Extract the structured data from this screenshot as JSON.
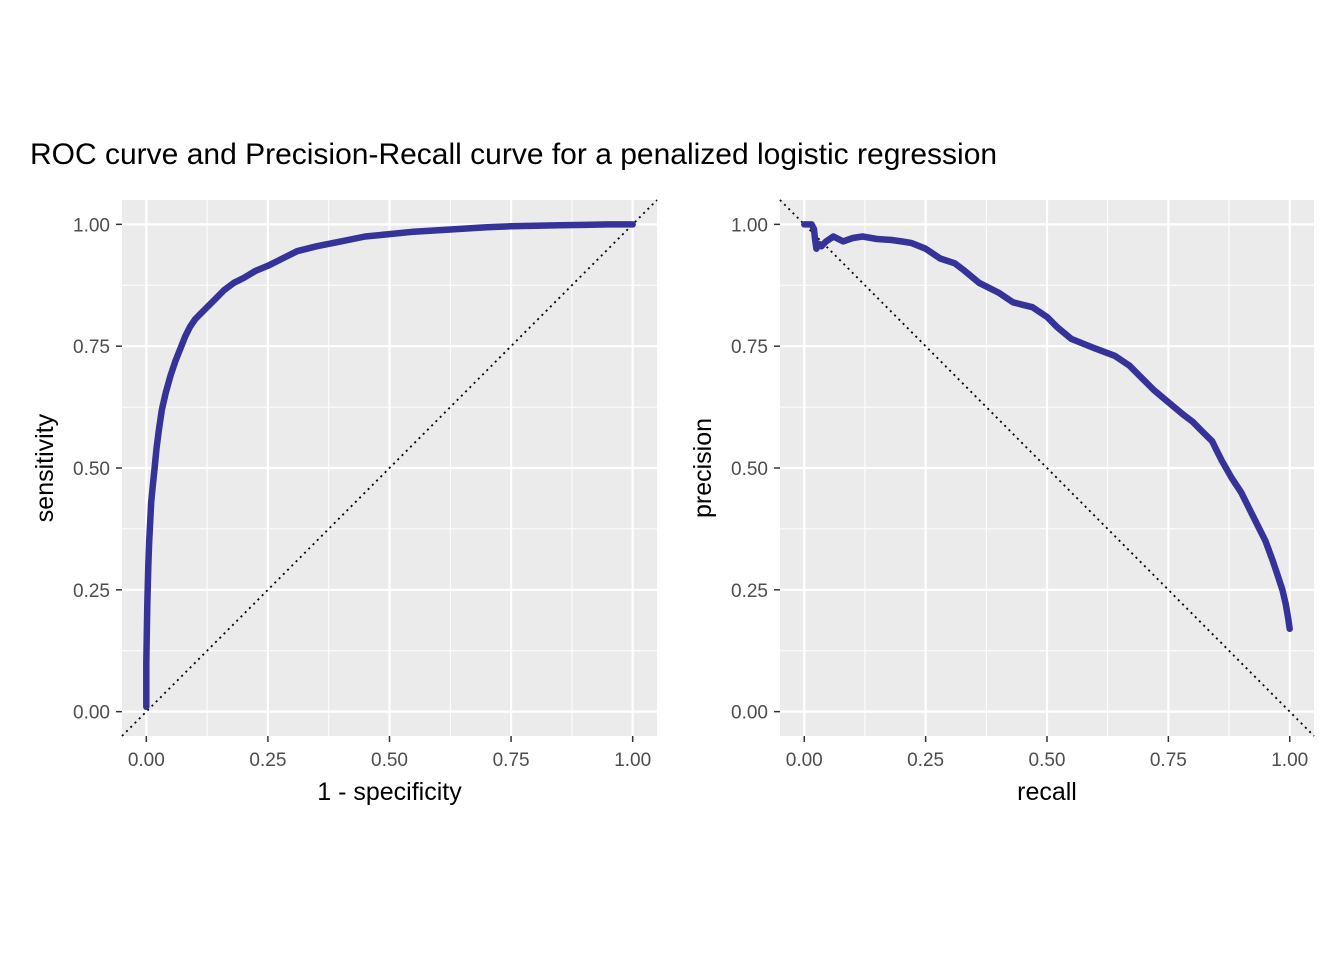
{
  "figure_title": "ROC curve and Precision-Recall curve for a penalized logistic regression",
  "colors": {
    "panel_background": "#EBEBEB",
    "grid_line": "#FFFFFF",
    "curve": "#35339A",
    "reference_line": "#000000",
    "tick_text": "#4D4D4D"
  },
  "chart_data": [
    {
      "type": "line",
      "name": "ROC curve",
      "xlabel": "1 - specificity",
      "ylabel": "sensitivity",
      "xlim": [
        -0.05,
        1.05
      ],
      "ylim": [
        -0.05,
        1.05
      ],
      "x_ticks": [
        "0.00",
        "0.25",
        "0.50",
        "0.75",
        "1.00"
      ],
      "y_ticks": [
        "0.00",
        "0.25",
        "0.50",
        "0.75",
        "1.00"
      ],
      "grid": true,
      "reference_line": {
        "style": "dotted",
        "from": [
          0,
          0
        ],
        "to": [
          1,
          1
        ]
      },
      "series": [
        {
          "x": [
            0,
            0,
            0.002,
            0.004,
            0.006,
            0.008,
            0.01,
            0.013,
            0.017,
            0.021,
            0.026,
            0.032,
            0.04,
            0.05,
            0.06,
            0.07,
            0.08,
            0.09,
            0.1,
            0.11,
            0.125,
            0.14,
            0.16,
            0.18,
            0.2,
            0.225,
            0.25,
            0.28,
            0.31,
            0.35,
            0.4,
            0.45,
            0.5,
            0.55,
            0.6,
            0.65,
            0.7,
            0.75,
            0.8,
            0.85,
            0.9,
            0.95,
            1.0
          ],
          "y": [
            0.01,
            0.1,
            0.22,
            0.3,
            0.35,
            0.39,
            0.43,
            0.46,
            0.5,
            0.54,
            0.58,
            0.62,
            0.655,
            0.69,
            0.72,
            0.745,
            0.77,
            0.79,
            0.805,
            0.815,
            0.83,
            0.845,
            0.865,
            0.88,
            0.89,
            0.905,
            0.915,
            0.93,
            0.945,
            0.955,
            0.965,
            0.975,
            0.98,
            0.985,
            0.988,
            0.991,
            0.994,
            0.996,
            0.997,
            0.998,
            0.999,
            1.0,
            1.0
          ]
        }
      ]
    },
    {
      "type": "line",
      "name": "Precision-Recall curve",
      "xlabel": "recall",
      "ylabel": "precision",
      "xlim": [
        -0.05,
        1.05
      ],
      "ylim": [
        -0.05,
        1.05
      ],
      "x_ticks": [
        "0.00",
        "0.25",
        "0.50",
        "0.75",
        "1.00"
      ],
      "y_ticks": [
        "0.00",
        "0.25",
        "0.50",
        "0.75",
        "1.00"
      ],
      "grid": true,
      "reference_line": {
        "style": "dotted",
        "from": [
          0,
          1
        ],
        "to": [
          1,
          0
        ]
      },
      "series": [
        {
          "x": [
            0.0,
            0.008,
            0.015,
            0.02,
            0.022,
            0.025,
            0.03,
            0.035,
            0.045,
            0.06,
            0.08,
            0.1,
            0.12,
            0.15,
            0.18,
            0.2,
            0.22,
            0.25,
            0.28,
            0.31,
            0.33,
            0.36,
            0.4,
            0.43,
            0.45,
            0.47,
            0.5,
            0.52,
            0.55,
            0.6,
            0.64,
            0.67,
            0.7,
            0.72,
            0.75,
            0.78,
            0.8,
            0.82,
            0.84,
            0.85,
            0.86,
            0.88,
            0.9,
            0.92,
            0.935,
            0.95,
            0.965,
            0.975,
            0.985,
            0.992,
            0.997,
            1.0
          ],
          "y": [
            1.0,
            1.0,
            1.0,
            0.99,
            0.97,
            0.95,
            0.96,
            0.955,
            0.965,
            0.975,
            0.965,
            0.972,
            0.975,
            0.97,
            0.968,
            0.965,
            0.962,
            0.95,
            0.93,
            0.92,
            0.905,
            0.88,
            0.86,
            0.84,
            0.835,
            0.83,
            0.81,
            0.79,
            0.765,
            0.745,
            0.73,
            0.71,
            0.68,
            0.66,
            0.635,
            0.61,
            0.595,
            0.575,
            0.555,
            0.535,
            0.515,
            0.48,
            0.45,
            0.41,
            0.38,
            0.35,
            0.31,
            0.28,
            0.25,
            0.22,
            0.19,
            0.17
          ]
        }
      ]
    }
  ]
}
